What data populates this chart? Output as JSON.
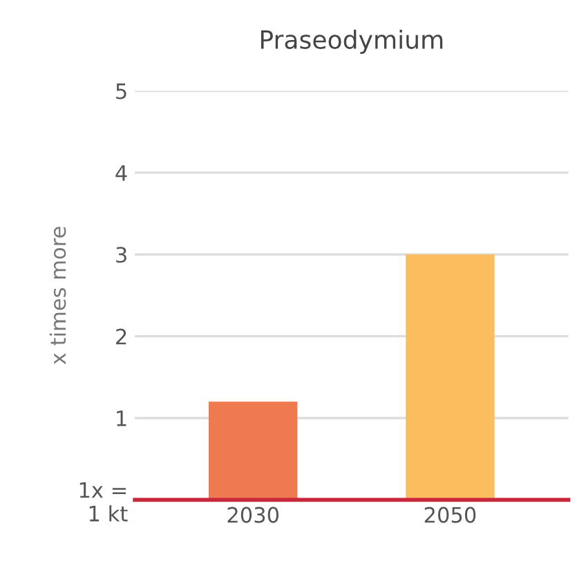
{
  "chart_data": {
    "type": "bar",
    "title": "Praseodymium",
    "ylabel": "x times more",
    "categories": [
      "2030",
      "2050"
    ],
    "values": [
      1.2,
      3.0
    ],
    "colors": [
      "#f07a50",
      "#fbbd5e"
    ],
    "ylim": [
      0,
      5
    ],
    "yticks": [
      {
        "value": 0,
        "label": "1x =\n1 kt"
      },
      1,
      2,
      3,
      4,
      5
    ],
    "grid": "y"
  }
}
